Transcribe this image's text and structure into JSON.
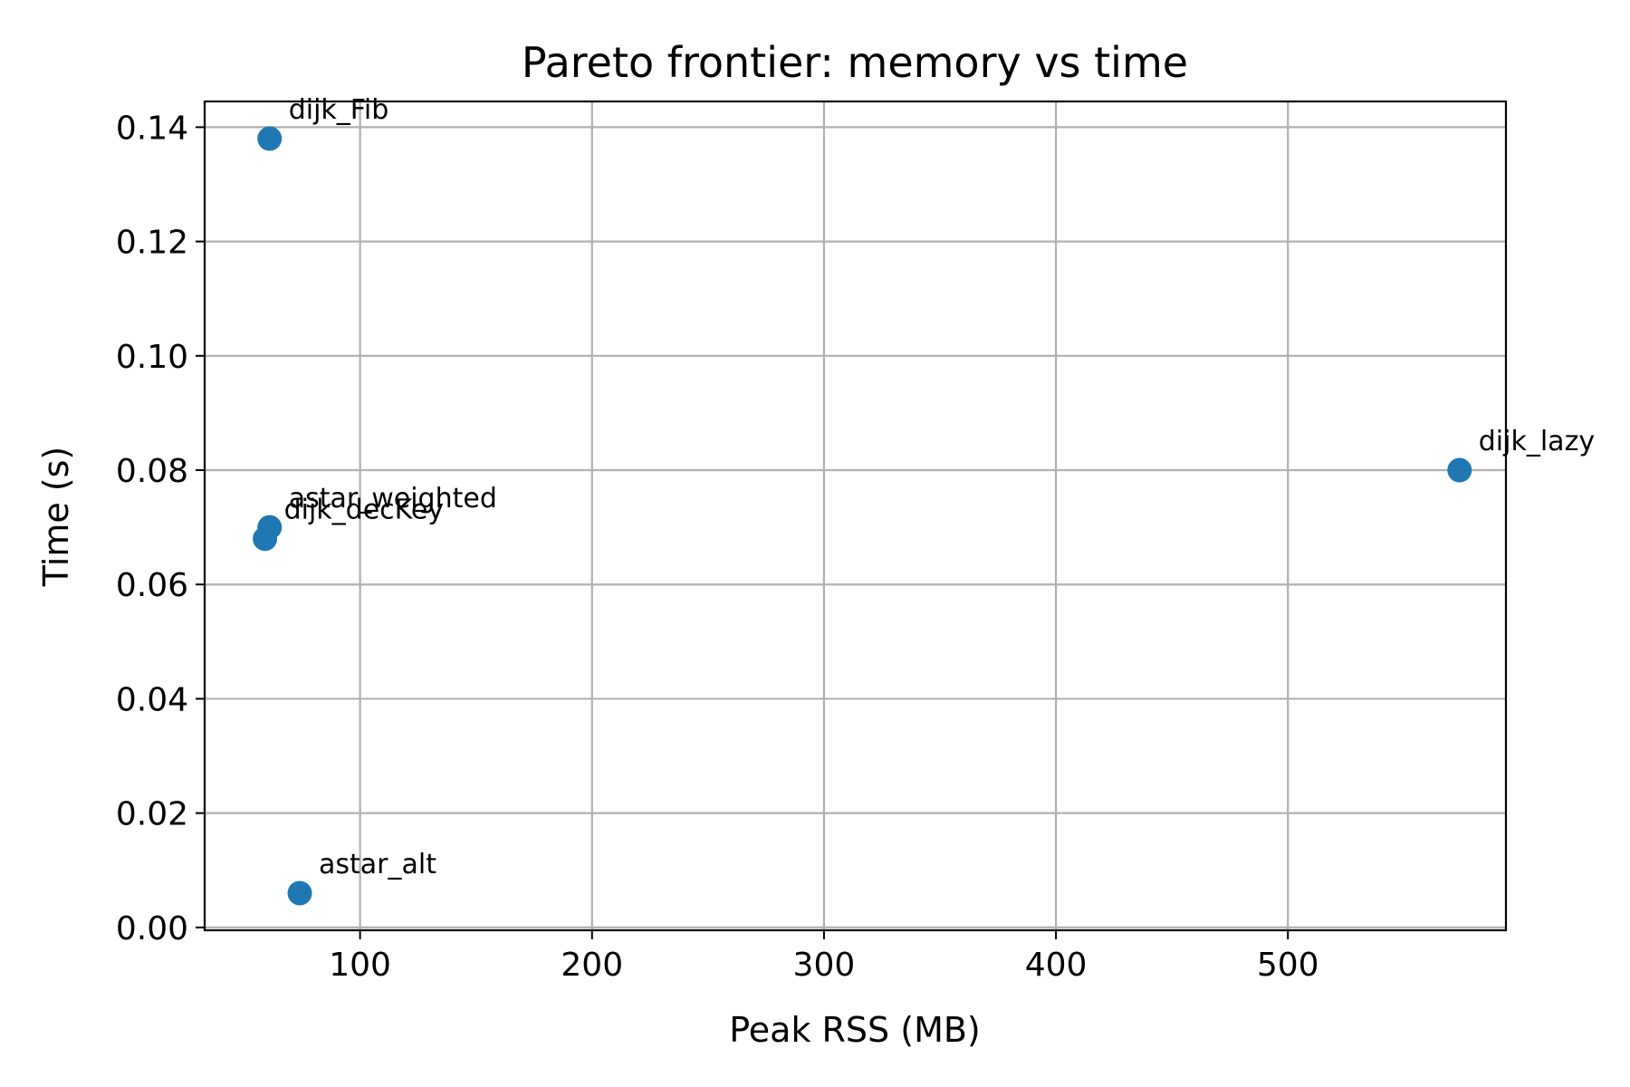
{
  "chart_data": {
    "type": "scatter",
    "title": "Pareto frontier: memory vs time",
    "xlabel": "Peak RSS (MB)",
    "ylabel": "Time (s)",
    "xlim": [
      33,
      594
    ],
    "ylim": [
      -0.0005,
      0.1445
    ],
    "xticks": [
      100,
      200,
      300,
      400,
      500
    ],
    "xtick_labels": [
      "100",
      "200",
      "300",
      "400",
      "500"
    ],
    "yticks": [
      0.0,
      0.02,
      0.04,
      0.06,
      0.08,
      0.1,
      0.12,
      0.14
    ],
    "ytick_labels": [
      "0.00",
      "0.02",
      "0.04",
      "0.06",
      "0.08",
      "0.10",
      "0.12",
      "0.14"
    ],
    "grid": true,
    "marker_color": "#1f77b4",
    "series": [
      {
        "points": [
          {
            "label": "dijk_Fib",
            "x": 61,
            "y": 0.138
          },
          {
            "label": "astar_weighted",
            "x": 61,
            "y": 0.07
          },
          {
            "label": "dijk_decKey",
            "x": 59,
            "y": 0.068
          },
          {
            "label": "astar_alt",
            "x": 74,
            "y": 0.006
          },
          {
            "label": "dijk_lazy",
            "x": 574,
            "y": 0.08
          }
        ]
      }
    ]
  }
}
